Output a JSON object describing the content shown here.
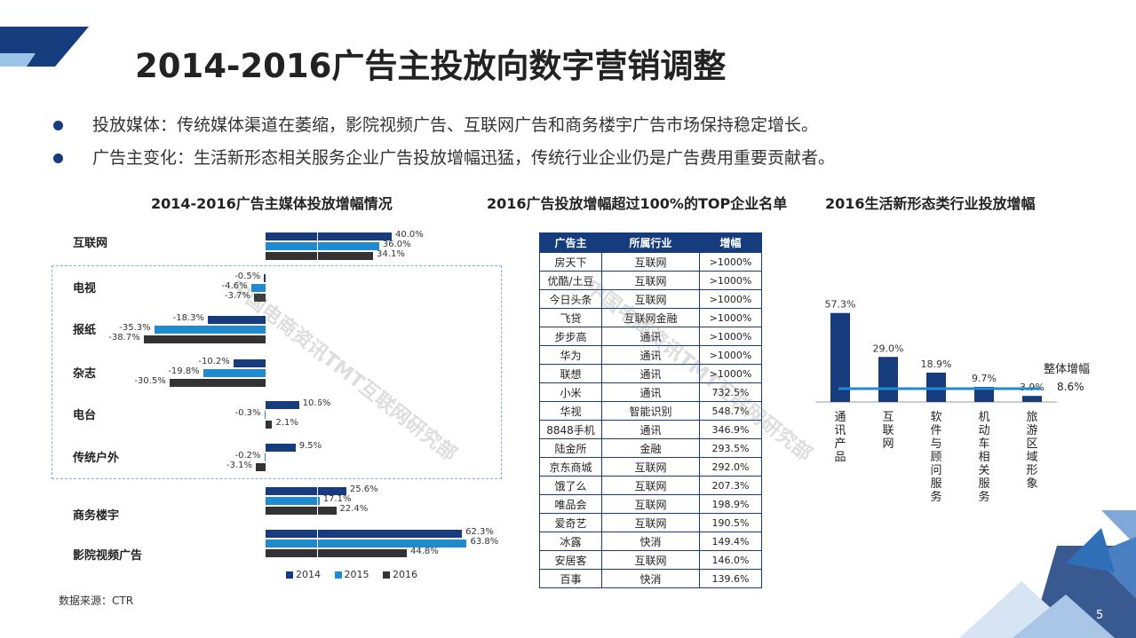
{
  "title": "2014-2016广告主投放向数字营销调整",
  "bullets": [
    "投放媒体：传统媒体渠道在萎缩，影院视频广告、互联网广告和商务楼宇广告市场保持稳定增长。",
    "广告主变化：生活新形态相关服务企业广告投放增幅迅猛，传统行业企业仍是广告费用重要贡献者。"
  ],
  "colors": {
    "y2014": "#163c7e",
    "y2015": "#1f8ad0",
    "y2016": "#333333",
    "accent": "#163c7e",
    "line": "#1f8ad0"
  },
  "watermark": "中国电商资讯TMT互联网研究部",
  "source": "数据来源：CTR",
  "page_number": "5",
  "chart_data": [
    {
      "type": "bar",
      "title": "2014-2016广告主媒体投放增幅情况",
      "orientation": "horizontal",
      "categories": [
        "互联网",
        "电视",
        "报纸",
        "杂志",
        "电台",
        "传统户外",
        "商务楼宇",
        "影院视频广告"
      ],
      "series": [
        {
          "name": "2014",
          "values": [
            40.0,
            -0.5,
            -18.3,
            -10.2,
            10.6,
            9.5,
            25.6,
            62.3
          ],
          "labels": [
            "40.0%",
            "-0.5%",
            "-18.3%",
            "-10.2%",
            "10.6%",
            "9.5%",
            "25.6%",
            "62.3%"
          ]
        },
        {
          "name": "2015",
          "values": [
            36.0,
            -4.6,
            -35.3,
            -19.8,
            -0.3,
            -0.2,
            17.1,
            63.8
          ],
          "labels": [
            "36.0%",
            "-4.6%",
            "-35.3%",
            "-19.8%",
            "-0.3%",
            "-0.2%",
            "17.1%",
            "63.8%"
          ]
        },
        {
          "name": "2016",
          "values": [
            34.1,
            -3.7,
            -38.7,
            -30.5,
            2.1,
            -3.1,
            22.4,
            44.8
          ],
          "labels": [
            "34.1%",
            "-3.7%",
            "-38.7%",
            "-30.5%",
            "2.1%",
            "-3.1%",
            "22.4%",
            "44.8%"
          ]
        }
      ]
    },
    {
      "type": "table",
      "title": "2016广告投放增幅超过100%的TOP企业名单",
      "columns": [
        "广告主",
        "所属行业",
        "增幅"
      ],
      "rows": [
        [
          "房天下",
          "互联网",
          ">1000%"
        ],
        [
          "优酷/土豆",
          "互联网",
          ">1000%"
        ],
        [
          "今日头条",
          "互联网",
          ">1000%"
        ],
        [
          "飞贷",
          "互联网金融",
          ">1000%"
        ],
        [
          "步步高",
          "通讯",
          ">1000%"
        ],
        [
          "华为",
          "通讯",
          ">1000%"
        ],
        [
          "联想",
          "通讯",
          ">1000%"
        ],
        [
          "小米",
          "通讯",
          "732.5%"
        ],
        [
          "华视",
          "智能识别",
          "548.7%"
        ],
        [
          "8848手机",
          "通讯",
          "346.9%"
        ],
        [
          "陆金所",
          "金融",
          "293.5%"
        ],
        [
          "京东商城",
          "互联网",
          "292.0%"
        ],
        [
          "饿了么",
          "互联网",
          "207.3%"
        ],
        [
          "唯品会",
          "互联网",
          "198.9%"
        ],
        [
          "爱奇艺",
          "互联网",
          "190.5%"
        ],
        [
          "冰露",
          "快消",
          "149.4%"
        ],
        [
          "安居客",
          "互联网",
          "146.0%"
        ],
        [
          "百事",
          "快消",
          "139.6%"
        ]
      ]
    },
    {
      "type": "bar",
      "title": "2016生活新形态类行业投放增幅",
      "categories": [
        "通讯产品",
        "互联网",
        "软件与顾问服务",
        "机动车相关服务",
        "旅游区域形象"
      ],
      "values": [
        57.3,
        29.0,
        18.9,
        9.7,
        3.9
      ],
      "labels": [
        "57.3%",
        "29.0%",
        "18.9%",
        "9.7%",
        "3.9%"
      ],
      "reference_line": {
        "name": "整体增幅",
        "value": 8.6,
        "label": "8.6%"
      }
    }
  ]
}
